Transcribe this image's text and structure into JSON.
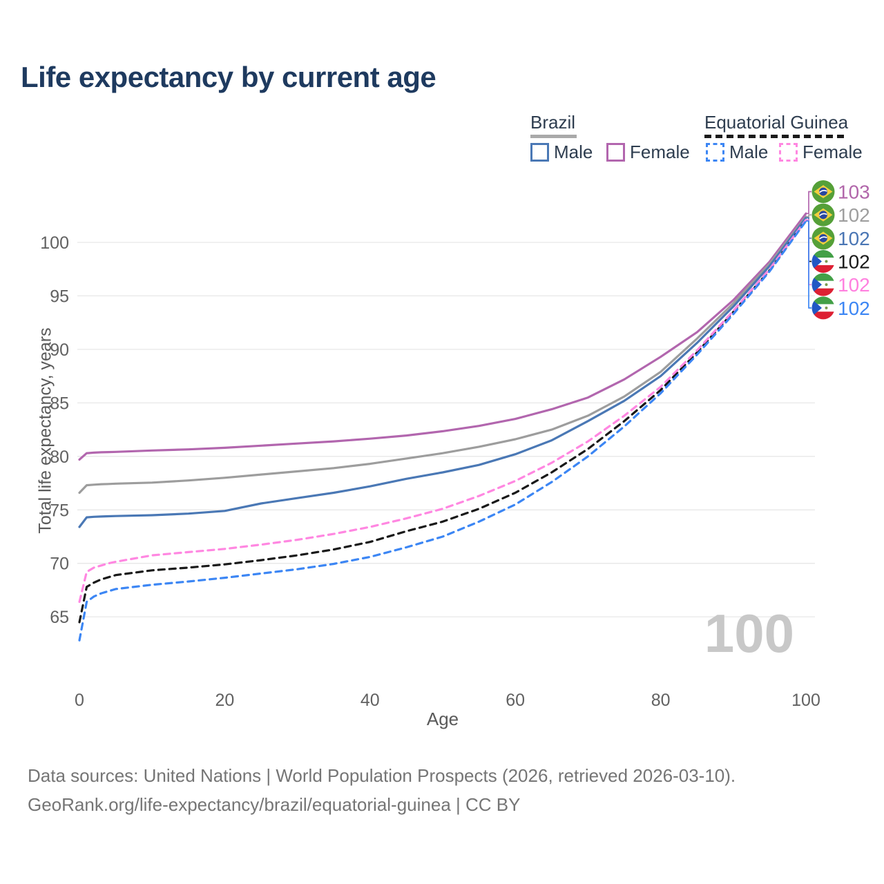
{
  "title": "Life expectancy by current age",
  "watermark_age": "100",
  "legend": {
    "groups": [
      {
        "label": "Brazil",
        "line_style": "solid",
        "underline_color": "#a9a9a9",
        "items": [
          {
            "label": "Male",
            "color": "#4a78b5"
          },
          {
            "label": "Female",
            "color": "#b266ae"
          }
        ]
      },
      {
        "label": "Equatorial Guinea",
        "line_style": "dashed",
        "underline_color": "#1a1a1a",
        "items": [
          {
            "label": "Male",
            "color": "#3c86f4"
          },
          {
            "label": "Female",
            "color": "#ff87e1"
          }
        ]
      }
    ]
  },
  "footer": {
    "line1": "Data sources: United Nations | World Population Prospects (2026, retrieved 2026-03-10).",
    "line2": "GeoRank.org/life-expectancy/brazil/equatorial-guinea | CC BY"
  },
  "chart_data": {
    "type": "line",
    "title": "Life expectancy by current age",
    "xlabel": "Age",
    "ylabel": "Total life expectancy, years",
    "x_ticks": [
      0,
      20,
      40,
      60,
      80,
      100
    ],
    "y_ticks": [
      65,
      70,
      75,
      80,
      85,
      90,
      95,
      100
    ],
    "xlim": [
      0,
      100
    ],
    "ylim": [
      62,
      104
    ],
    "grid": "horizontal-only",
    "legend_position": "top-right",
    "x": [
      0,
      1,
      2,
      3,
      4,
      5,
      10,
      15,
      20,
      25,
      30,
      35,
      40,
      45,
      50,
      55,
      60,
      65,
      70,
      75,
      80,
      85,
      90,
      95,
      100
    ],
    "series": [
      {
        "name": "Brazil Female",
        "country": "brazil",
        "color": "#b266ae",
        "dash": false,
        "end_label": "103",
        "end_label_color": "#b166aa",
        "values": [
          79.7,
          80.3,
          80.35,
          80.38,
          80.4,
          80.42,
          80.55,
          80.65,
          80.8,
          81.0,
          81.2,
          81.4,
          81.65,
          81.95,
          82.35,
          82.85,
          83.5,
          84.4,
          85.5,
          87.2,
          89.3,
          91.6,
          94.6,
          98.2,
          102.7
        ]
      },
      {
        "name": "Brazil Both sexes",
        "country": "brazil",
        "color": "#9d9d9d",
        "dash": false,
        "end_label": "102",
        "end_label_color": "#9e9e9e",
        "values": [
          76.6,
          77.3,
          77.35,
          77.4,
          77.42,
          77.45,
          77.55,
          77.75,
          78.0,
          78.3,
          78.6,
          78.9,
          79.3,
          79.8,
          80.3,
          80.9,
          81.6,
          82.5,
          83.8,
          85.6,
          87.9,
          91.0,
          94.3,
          98.0,
          102.4
        ]
      },
      {
        "name": "Brazil Male",
        "country": "brazil",
        "color": "#4a78b5",
        "dash": false,
        "end_label": "102",
        "end_label_color": "#4a76b4",
        "values": [
          73.4,
          74.3,
          74.35,
          74.38,
          74.4,
          74.42,
          74.5,
          74.65,
          74.9,
          75.6,
          76.1,
          76.6,
          77.2,
          77.9,
          78.5,
          79.2,
          80.2,
          81.5,
          83.3,
          85.2,
          87.5,
          90.6,
          94.0,
          97.8,
          102.3
        ]
      },
      {
        "name": "Equatorial Guinea Both sexes",
        "country": "equatorial-guinea",
        "color": "#191919",
        "dash": true,
        "end_label": "102",
        "end_label_color": "#1a1a1a",
        "values": [
          64.5,
          67.8,
          68.2,
          68.5,
          68.7,
          68.9,
          69.35,
          69.6,
          69.9,
          70.3,
          70.75,
          71.3,
          72.0,
          73.0,
          73.9,
          75.1,
          76.6,
          78.5,
          80.7,
          83.3,
          86.2,
          89.7,
          93.5,
          97.4,
          102.05
        ]
      },
      {
        "name": "Equatorial Guinea Female",
        "country": "equatorial-guinea",
        "color": "#ff87e1",
        "dash": true,
        "end_label": "102",
        "end_label_color": "#ff80df",
        "values": [
          66.4,
          69.2,
          69.6,
          69.8,
          70.0,
          70.15,
          70.75,
          71.05,
          71.35,
          71.75,
          72.2,
          72.75,
          73.4,
          74.2,
          75.1,
          76.3,
          77.7,
          79.4,
          81.4,
          83.8,
          86.5,
          89.9,
          93.6,
          97.5,
          102.1
        ]
      },
      {
        "name": "Equatorial Guinea Male",
        "country": "equatorial-guinea",
        "color": "#3c86f4",
        "dash": true,
        "end_label": "102",
        "end_label_color": "#3c86f4",
        "values": [
          62.8,
          66.4,
          66.9,
          67.2,
          67.4,
          67.6,
          68.0,
          68.3,
          68.65,
          69.05,
          69.45,
          69.95,
          70.6,
          71.5,
          72.5,
          73.9,
          75.5,
          77.6,
          80.0,
          82.8,
          85.9,
          89.5,
          93.3,
          97.3,
          102.0
        ]
      }
    ]
  }
}
